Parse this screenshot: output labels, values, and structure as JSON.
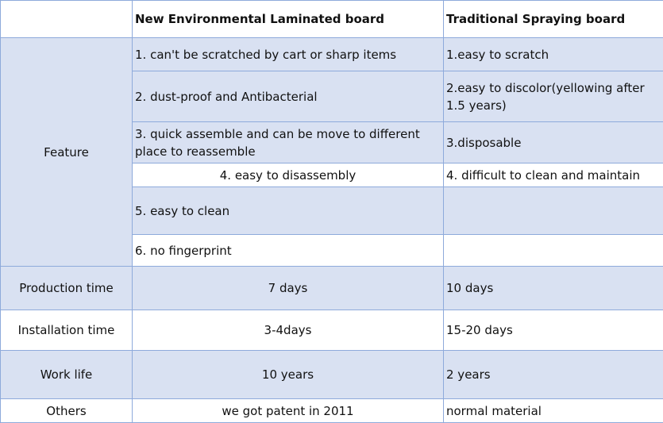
{
  "header": {
    "col1": "",
    "col2": "New Environmental Laminated board",
    "col3": "Traditional Spraying board"
  },
  "feature": {
    "label": "Feature",
    "rows": [
      {
        "new": "1. can't be scratched by cart or sharp items",
        "old": "1.easy to scratch"
      },
      {
        "new": "2. dust-proof and Antibacterial",
        "old": "2.easy to discolor(yellowing after 1.5 years)"
      },
      {
        "new": "3. quick assemble and can be move to different place to reassemble",
        "old": "3.disposable"
      },
      {
        "new": "4. easy to disassembly",
        "old": "4. difficult to clean and maintain"
      },
      {
        "new": "5. easy to clean",
        "old": ""
      },
      {
        "new": "6. no fingerprint",
        "old": ""
      }
    ]
  },
  "rows": [
    {
      "label": "Production time",
      "new": "7 days",
      "old": "10 days"
    },
    {
      "label": "Installation time",
      "new": "3-4days",
      "old": "15-20 days"
    },
    {
      "label": "Work life",
      "new": "10 years",
      "old": "2 years"
    },
    {
      "label": "Others",
      "new": "we got patent in 2011",
      "old": "normal material"
    }
  ],
  "colors": {
    "shade": "#d9e1f2",
    "border": "#8eaadb"
  }
}
